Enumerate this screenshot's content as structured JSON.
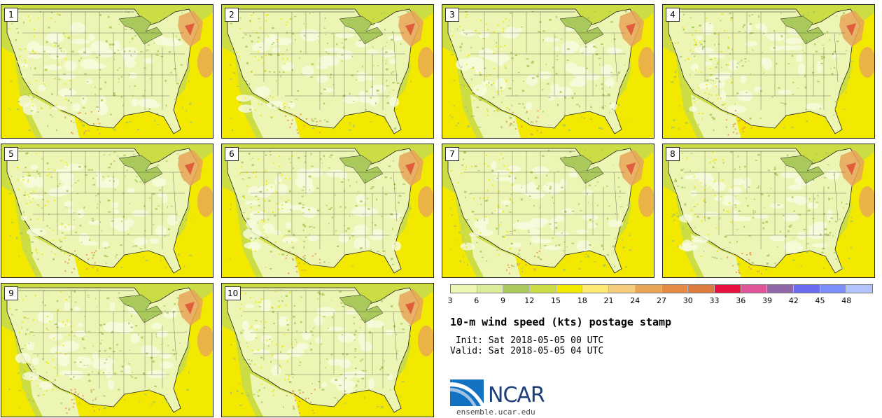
{
  "figure": {
    "title": "10-m wind speed (kts) postage stamp",
    "init": " Init: Sat 2018-05-05 00 UTC",
    "valid": "Valid: Sat 2018-05-05 04 UTC"
  },
  "members": [
    "1",
    "2",
    "3",
    "4",
    "5",
    "6",
    "7",
    "8",
    "9",
    "10"
  ],
  "colorbar": {
    "ticks": [
      "3",
      "6",
      "9",
      "12",
      "15",
      "18",
      "21",
      "24",
      "27",
      "30",
      "33",
      "36",
      "39",
      "42",
      "45",
      "48"
    ],
    "colors": [
      "#ecf5b4",
      "#d8ec9a",
      "#a9c95c",
      "#ccdc44",
      "#f2e800",
      "#fde873",
      "#f6cc7e",
      "#e8a558",
      "#e48a43",
      "#dd7a3d",
      "#e8103f",
      "#e0559a",
      "#9068a8",
      "#6b6bef",
      "#7b8ffa",
      "#b2c4fb"
    ]
  },
  "map_colors": {
    "land_base": "#ecf5b4",
    "light_patch": "#f7fbe0",
    "green": "#a9c95c",
    "yellow": "#ccdc44",
    "bright_yellow": "#f2e800",
    "orange": "#e8a558",
    "lake": "#a9c95c",
    "line": "#222222"
  },
  "logo": {
    "text": "NCAR",
    "url": "ensemble.ucar.edu",
    "colors": {
      "blue": "#1271c0",
      "navy": "#1d3f7a"
    }
  }
}
